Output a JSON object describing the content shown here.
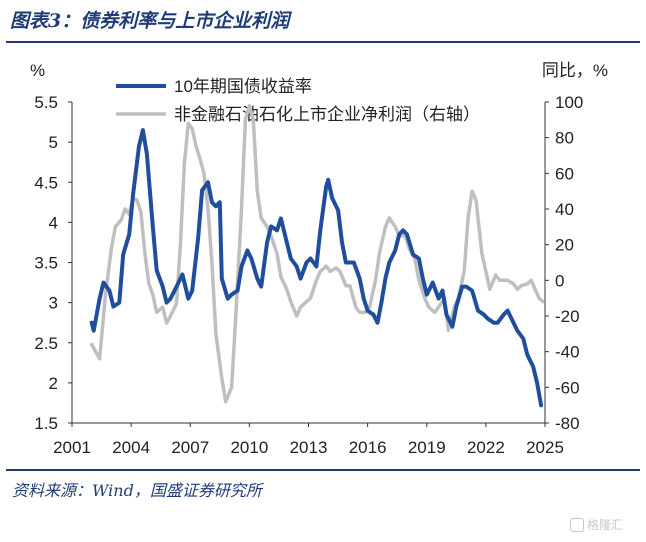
{
  "header": {
    "title": "图表3：债券利率与上市企业利润"
  },
  "footer": {
    "source": "资料来源：Wind，国盛证券研究所",
    "watermark": "格隆汇"
  },
  "colors": {
    "bond": "#1f4e9c",
    "profit": "#bfbfbf",
    "accent": "#1f3c79"
  },
  "chart_data": {
    "type": "line",
    "left_unit": "%",
    "right_unit": "同比，%",
    "x_ticks": [
      "2001",
      "2004",
      "2007",
      "2010",
      "2013",
      "2016",
      "2019",
      "2022",
      "2025"
    ],
    "xlim": [
      2001,
      2025
    ],
    "y_left": {
      "lim": [
        1.5,
        5.5
      ],
      "ticks": [
        "1.5",
        "2",
        "2.5",
        "3",
        "3.5",
        "4",
        "4.5",
        "5",
        "5.5"
      ]
    },
    "y_right": {
      "lim": [
        -80,
        100
      ],
      "ticks": [
        "-80",
        "-60",
        "-40",
        "-20",
        "0",
        "20",
        "40",
        "60",
        "80",
        "100"
      ]
    },
    "series": [
      {
        "name": "10年期国债收益率",
        "axis": "left",
        "points": [
          [
            2002.0,
            2.75
          ],
          [
            2002.1,
            2.65
          ],
          [
            2002.4,
            3.05
          ],
          [
            2002.6,
            3.25
          ],
          [
            2002.9,
            3.15
          ],
          [
            2003.1,
            2.95
          ],
          [
            2003.4,
            3.0
          ],
          [
            2003.6,
            3.6
          ],
          [
            2003.9,
            3.85
          ],
          [
            2004.1,
            4.35
          ],
          [
            2004.4,
            4.95
          ],
          [
            2004.6,
            5.15
          ],
          [
            2004.8,
            4.85
          ],
          [
            2005.1,
            3.95
          ],
          [
            2005.3,
            3.4
          ],
          [
            2005.6,
            3.2
          ],
          [
            2005.8,
            3.0
          ],
          [
            2006.0,
            3.05
          ],
          [
            2006.3,
            3.2
          ],
          [
            2006.6,
            3.35
          ],
          [
            2006.9,
            3.05
          ],
          [
            2007.1,
            3.15
          ],
          [
            2007.4,
            3.8
          ],
          [
            2007.6,
            4.4
          ],
          [
            2007.9,
            4.5
          ],
          [
            2008.1,
            4.25
          ],
          [
            2008.3,
            4.2
          ],
          [
            2008.5,
            4.25
          ],
          [
            2008.6,
            3.3
          ],
          [
            2008.9,
            3.05
          ],
          [
            2009.1,
            3.1
          ],
          [
            2009.4,
            3.15
          ],
          [
            2009.6,
            3.45
          ],
          [
            2009.9,
            3.65
          ],
          [
            2010.1,
            3.55
          ],
          [
            2010.4,
            3.3
          ],
          [
            2010.6,
            3.2
          ],
          [
            2010.9,
            3.75
          ],
          [
            2011.1,
            3.95
          ],
          [
            2011.4,
            3.9
          ],
          [
            2011.6,
            4.05
          ],
          [
            2011.9,
            3.75
          ],
          [
            2012.1,
            3.55
          ],
          [
            2012.4,
            3.45
          ],
          [
            2012.6,
            3.3
          ],
          [
            2012.9,
            3.5
          ],
          [
            2013.1,
            3.55
          ],
          [
            2013.4,
            3.45
          ],
          [
            2013.6,
            3.9
          ],
          [
            2013.9,
            4.45
          ],
          [
            2014.0,
            4.53
          ],
          [
            2014.2,
            4.3
          ],
          [
            2014.5,
            4.15
          ],
          [
            2014.7,
            3.75
          ],
          [
            2014.9,
            3.5
          ],
          [
            2015.1,
            3.5
          ],
          [
            2015.3,
            3.5
          ],
          [
            2015.6,
            3.3
          ],
          [
            2015.8,
            3.05
          ],
          [
            2016.0,
            2.9
          ],
          [
            2016.3,
            2.85
          ],
          [
            2016.5,
            2.75
          ],
          [
            2016.7,
            3.0
          ],
          [
            2016.9,
            3.3
          ],
          [
            2017.1,
            3.5
          ],
          [
            2017.4,
            3.65
          ],
          [
            2017.6,
            3.85
          ],
          [
            2017.8,
            3.9
          ],
          [
            2018.0,
            3.85
          ],
          [
            2018.3,
            3.6
          ],
          [
            2018.6,
            3.55
          ],
          [
            2018.8,
            3.3
          ],
          [
            2019.0,
            3.1
          ],
          [
            2019.3,
            3.25
          ],
          [
            2019.6,
            3.05
          ],
          [
            2019.8,
            3.15
          ],
          [
            2020.0,
            2.85
          ],
          [
            2020.3,
            2.7
          ],
          [
            2020.5,
            2.95
          ],
          [
            2020.8,
            3.2
          ],
          [
            2021.0,
            3.2
          ],
          [
            2021.3,
            3.15
          ],
          [
            2021.6,
            2.9
          ],
          [
            2021.9,
            2.85
          ],
          [
            2022.1,
            2.8
          ],
          [
            2022.4,
            2.75
          ],
          [
            2022.6,
            2.75
          ],
          [
            2022.9,
            2.85
          ],
          [
            2023.1,
            2.9
          ],
          [
            2023.4,
            2.75
          ],
          [
            2023.6,
            2.65
          ],
          [
            2023.9,
            2.55
          ],
          [
            2024.1,
            2.35
          ],
          [
            2024.4,
            2.2
          ],
          [
            2024.6,
            2.0
          ],
          [
            2024.8,
            1.72
          ]
        ]
      },
      {
        "name": "非金融石油石化上市企业净利润（右轴）",
        "axis": "right",
        "points": [
          [
            2002.0,
            -36
          ],
          [
            2002.4,
            -44
          ],
          [
            2002.7,
            -8
          ],
          [
            2003.0,
            18
          ],
          [
            2003.2,
            30
          ],
          [
            2003.5,
            34
          ],
          [
            2003.7,
            40
          ],
          [
            2003.9,
            37
          ],
          [
            2004.1,
            46
          ],
          [
            2004.3,
            45
          ],
          [
            2004.5,
            38
          ],
          [
            2004.7,
            15
          ],
          [
            2004.9,
            -2
          ],
          [
            2005.1,
            -8
          ],
          [
            2005.3,
            -18
          ],
          [
            2005.6,
            -15
          ],
          [
            2005.8,
            -24
          ],
          [
            2006.0,
            -20
          ],
          [
            2006.3,
            -13
          ],
          [
            2006.5,
            20
          ],
          [
            2006.7,
            65
          ],
          [
            2006.9,
            88
          ],
          [
            2007.1,
            85
          ],
          [
            2007.3,
            75
          ],
          [
            2007.5,
            68
          ],
          [
            2007.7,
            60
          ],
          [
            2007.9,
            40
          ],
          [
            2008.1,
            10
          ],
          [
            2008.3,
            -30
          ],
          [
            2008.6,
            -55
          ],
          [
            2008.8,
            -68
          ],
          [
            2009.1,
            -60
          ],
          [
            2009.3,
            -22
          ],
          [
            2009.6,
            40
          ],
          [
            2009.8,
            90
          ],
          [
            2010.0,
            98
          ],
          [
            2010.2,
            90
          ],
          [
            2010.4,
            50
          ],
          [
            2010.6,
            35
          ],
          [
            2010.9,
            30
          ],
          [
            2011.1,
            25
          ],
          [
            2011.4,
            15
          ],
          [
            2011.6,
            2
          ],
          [
            2011.9,
            -5
          ],
          [
            2012.1,
            -12
          ],
          [
            2012.4,
            -20
          ],
          [
            2012.6,
            -15
          ],
          [
            2012.9,
            -12
          ],
          [
            2013.1,
            -10
          ],
          [
            2013.4,
            0
          ],
          [
            2013.6,
            5
          ],
          [
            2013.9,
            8
          ],
          [
            2014.1,
            5
          ],
          [
            2014.4,
            7
          ],
          [
            2014.6,
            5
          ],
          [
            2014.9,
            -3
          ],
          [
            2015.1,
            -3
          ],
          [
            2015.4,
            -15
          ],
          [
            2015.6,
            -18
          ],
          [
            2015.9,
            -18
          ],
          [
            2016.1,
            -15
          ],
          [
            2016.4,
            0
          ],
          [
            2016.6,
            15
          ],
          [
            2016.9,
            30
          ],
          [
            2017.1,
            35
          ],
          [
            2017.4,
            30
          ],
          [
            2017.6,
            25
          ],
          [
            2017.9,
            25
          ],
          [
            2018.1,
            18
          ],
          [
            2018.4,
            12
          ],
          [
            2018.6,
            0
          ],
          [
            2018.9,
            -10
          ],
          [
            2019.1,
            -15
          ],
          [
            2019.4,
            -18
          ],
          [
            2019.6,
            -15
          ],
          [
            2019.9,
            -10
          ],
          [
            2020.1,
            -28
          ],
          [
            2020.4,
            -15
          ],
          [
            2020.6,
            -10
          ],
          [
            2020.9,
            5
          ],
          [
            2021.1,
            35
          ],
          [
            2021.3,
            50
          ],
          [
            2021.5,
            45
          ],
          [
            2021.8,
            15
          ],
          [
            2022.0,
            5
          ],
          [
            2022.2,
            -5
          ],
          [
            2022.5,
            3
          ],
          [
            2022.7,
            0
          ],
          [
            2022.9,
            0
          ],
          [
            2023.1,
            0
          ],
          [
            2023.4,
            -2
          ],
          [
            2023.6,
            -5
          ],
          [
            2023.8,
            -3
          ],
          [
            2024.1,
            -2
          ],
          [
            2024.3,
            0
          ],
          [
            2024.5,
            -5
          ],
          [
            2024.7,
            -10
          ],
          [
            2024.9,
            -12
          ]
        ]
      }
    ],
    "grid": false,
    "legend_position": "top-center"
  }
}
